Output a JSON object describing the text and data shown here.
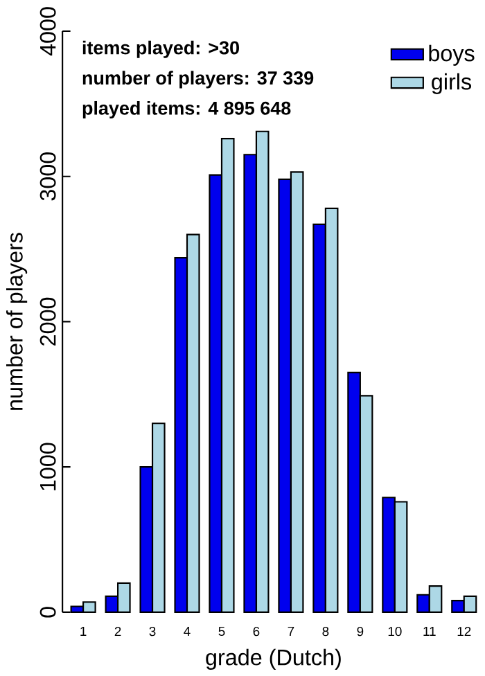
{
  "chart_data": {
    "type": "bar",
    "xlabel": "grade (Dutch)",
    "ylabel": "number of players",
    "categories": [
      "1",
      "2",
      "3",
      "4",
      "5",
      "6",
      "7",
      "8",
      "9",
      "10",
      "11",
      "12"
    ],
    "series": [
      {
        "name": "boys",
        "color": "#0000ee",
        "values": [
          40,
          110,
          1000,
          2440,
          3010,
          3150,
          2980,
          2670,
          1650,
          790,
          120,
          80
        ]
      },
      {
        "name": "girls",
        "color": "#add8e6",
        "values": [
          70,
          200,
          1300,
          2600,
          3260,
          3310,
          3030,
          2780,
          1490,
          760,
          180,
          110
        ]
      }
    ],
    "ylim": [
      0,
      4000
    ],
    "yticks": [
      0,
      1000,
      2000,
      3000,
      4000
    ],
    "grid": false,
    "legend": "top right",
    "annotations": [
      "items played: >30",
      "number of players: 37 339",
      "played items: 4 895 648"
    ]
  }
}
